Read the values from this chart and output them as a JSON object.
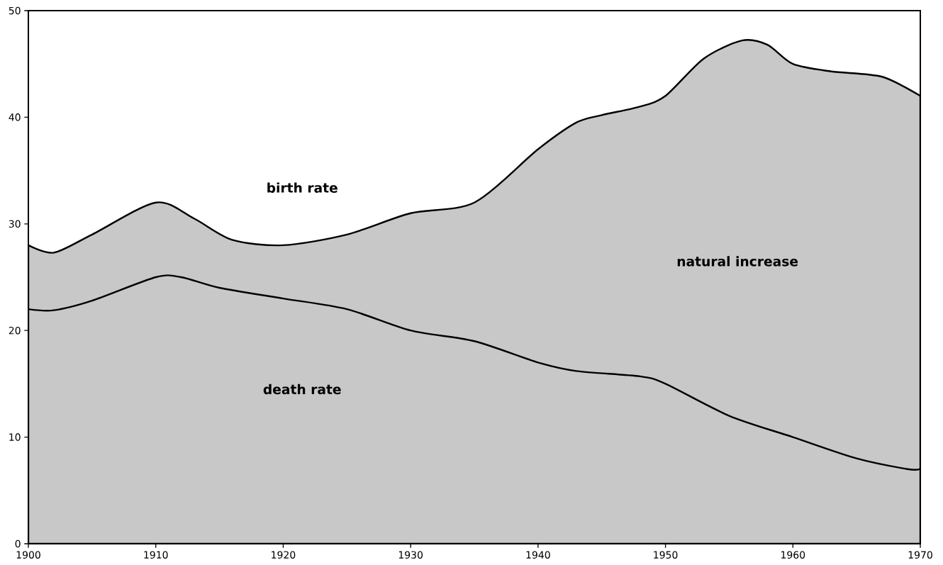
{
  "chart_data": {
    "type": "area",
    "x": [
      1900,
      1902,
      1905,
      1910,
      1913,
      1916,
      1920,
      1925,
      1930,
      1935,
      1940,
      1943,
      1945,
      1948,
      1950,
      1953,
      1956,
      1958,
      1960,
      1963,
      1967,
      1970
    ],
    "series": [
      {
        "color": "#c8c8c8",
        "values": [
          28,
          27.3,
          29,
          32,
          30.5,
          28.5,
          28,
          29,
          31,
          32,
          37,
          39.5,
          40.2,
          41,
          42,
          45.5,
          47.2,
          46.8,
          45,
          44.3,
          43.8,
          42
        ]
      },
      {
        "type": "line",
        "color": "#000000",
        "x": [
          1900,
          1902,
          1905,
          1910,
          1912,
          1915,
          1920,
          1925,
          1930,
          1935,
          1940,
          1943,
          1948,
          1950,
          1955,
          1960,
          1965,
          1969,
          1970
        ],
        "values": [
          22,
          21.9,
          22.8,
          25,
          25,
          24,
          23,
          22,
          20,
          19,
          17,
          16.2,
          15.7,
          15,
          12,
          10,
          8,
          7,
          7
        ]
      }
    ],
    "xlim": [
      1900,
      1970
    ],
    "xticks": [
      1900,
      1910,
      1920,
      1930,
      1940,
      1950,
      1960,
      1970
    ],
    "ylim": [
      0,
      50
    ],
    "yticks": [
      0,
      10,
      20,
      30,
      40,
      50
    ],
    "annotations": [
      "birth rate",
      "death rate",
      "natural increase"
    ]
  }
}
